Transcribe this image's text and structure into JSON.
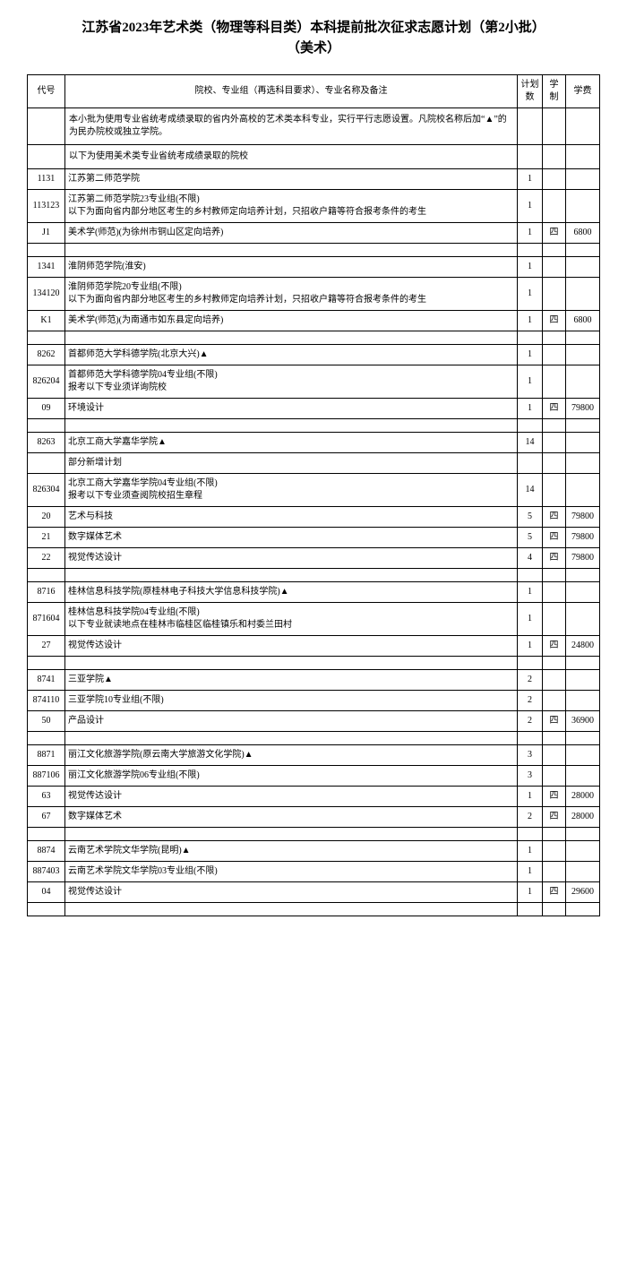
{
  "title_line1": "江苏省2023年艺术类（物理等科目类）本科提前批次征求志愿计划（第2小批）",
  "title_line2": "（美术）",
  "headers": {
    "code": "代号",
    "name": "院校、专业组（再选科目要求）、专业名称及备注",
    "plan": "计划数",
    "duration": "学制",
    "fee": "学费"
  },
  "note1": "本小批为使用专业省统考成绩录取的省内外高校的艺术类本科专业，实行平行志愿设置。凡院校名称后加“▲”的为民办院校或独立学院。",
  "note2": "以下为使用美术类专业省统考成绩录取的院校",
  "rows": [
    {
      "code": "1131",
      "name": "江苏第二师范学院",
      "plan": "1",
      "dur": "",
      "fee": ""
    },
    {
      "code": "113123",
      "name": "江苏第二师范学院23专业组(不限)\n以下为面向省内部分地区考生的乡村教师定向培养计划，只招收户籍等符合报考条件的考生",
      "plan": "1",
      "dur": "",
      "fee": ""
    },
    {
      "code": "J1",
      "name": "美术学(师范)(为徐州市铜山区定向培养)",
      "plan": "1",
      "dur": "四",
      "fee": "6800"
    },
    {
      "spacer": true
    },
    {
      "code": "1341",
      "name": "淮阴师范学院(淮安)",
      "plan": "1",
      "dur": "",
      "fee": ""
    },
    {
      "code": "134120",
      "name": "淮阴师范学院20专业组(不限)\n以下为面向省内部分地区考生的乡村教师定向培养计划，只招收户籍等符合报考条件的考生",
      "plan": "1",
      "dur": "",
      "fee": ""
    },
    {
      "code": "K1",
      "name": "美术学(师范)(为南通市如东县定向培养)",
      "plan": "1",
      "dur": "四",
      "fee": "6800"
    },
    {
      "spacer": true
    },
    {
      "code": "8262",
      "name": "首都师范大学科德学院(北京大兴)▲",
      "plan": "1",
      "dur": "",
      "fee": ""
    },
    {
      "code": "826204",
      "name": "首都师范大学科德学院04专业组(不限)\n报考以下专业须详询院校",
      "plan": "1",
      "dur": "",
      "fee": ""
    },
    {
      "code": "09",
      "name": "环境设计",
      "plan": "1",
      "dur": "四",
      "fee": "79800"
    },
    {
      "spacer": true
    },
    {
      "code": "8263",
      "name": "北京工商大学嘉华学院▲",
      "plan": "14",
      "dur": "",
      "fee": ""
    },
    {
      "code": "",
      "name": "部分新增计划",
      "plan": "",
      "dur": "",
      "fee": ""
    },
    {
      "code": "826304",
      "name": "北京工商大学嘉华学院04专业组(不限)\n报考以下专业须查阅院校招生章程",
      "plan": "14",
      "dur": "",
      "fee": ""
    },
    {
      "code": "20",
      "name": "艺术与科技",
      "plan": "5",
      "dur": "四",
      "fee": "79800"
    },
    {
      "code": "21",
      "name": "数字媒体艺术",
      "plan": "5",
      "dur": "四",
      "fee": "79800"
    },
    {
      "code": "22",
      "name": "视觉传达设计",
      "plan": "4",
      "dur": "四",
      "fee": "79800"
    },
    {
      "spacer": true
    },
    {
      "code": "8716",
      "name": "桂林信息科技学院(原桂林电子科技大学信息科技学院)▲",
      "plan": "1",
      "dur": "",
      "fee": ""
    },
    {
      "code": "871604",
      "name": "桂林信息科技学院04专业组(不限)\n以下专业就读地点在桂林市临桂区临桂镇乐和村委兰田村",
      "plan": "1",
      "dur": "",
      "fee": ""
    },
    {
      "code": "27",
      "name": "视觉传达设计",
      "plan": "1",
      "dur": "四",
      "fee": "24800"
    },
    {
      "spacer": true
    },
    {
      "code": "8741",
      "name": "三亚学院▲",
      "plan": "2",
      "dur": "",
      "fee": ""
    },
    {
      "code": "874110",
      "name": "三亚学院10专业组(不限)",
      "plan": "2",
      "dur": "",
      "fee": ""
    },
    {
      "code": "50",
      "name": "产品设计",
      "plan": "2",
      "dur": "四",
      "fee": "36900"
    },
    {
      "spacer": true
    },
    {
      "code": "8871",
      "name": "丽江文化旅游学院(原云南大学旅游文化学院)▲",
      "plan": "3",
      "dur": "",
      "fee": ""
    },
    {
      "code": "887106",
      "name": "丽江文化旅游学院06专业组(不限)",
      "plan": "3",
      "dur": "",
      "fee": ""
    },
    {
      "code": "63",
      "name": "视觉传达设计",
      "plan": "1",
      "dur": "四",
      "fee": "28000"
    },
    {
      "code": "67",
      "name": "数字媒体艺术",
      "plan": "2",
      "dur": "四",
      "fee": "28000"
    },
    {
      "spacer": true
    },
    {
      "code": "8874",
      "name": "云南艺术学院文华学院(昆明)▲",
      "plan": "1",
      "dur": "",
      "fee": ""
    },
    {
      "code": "887403",
      "name": "云南艺术学院文华学院03专业组(不限)",
      "plan": "1",
      "dur": "",
      "fee": ""
    },
    {
      "code": "04",
      "name": "视觉传达设计",
      "plan": "1",
      "dur": "四",
      "fee": "29600"
    },
    {
      "spacer": true
    }
  ]
}
